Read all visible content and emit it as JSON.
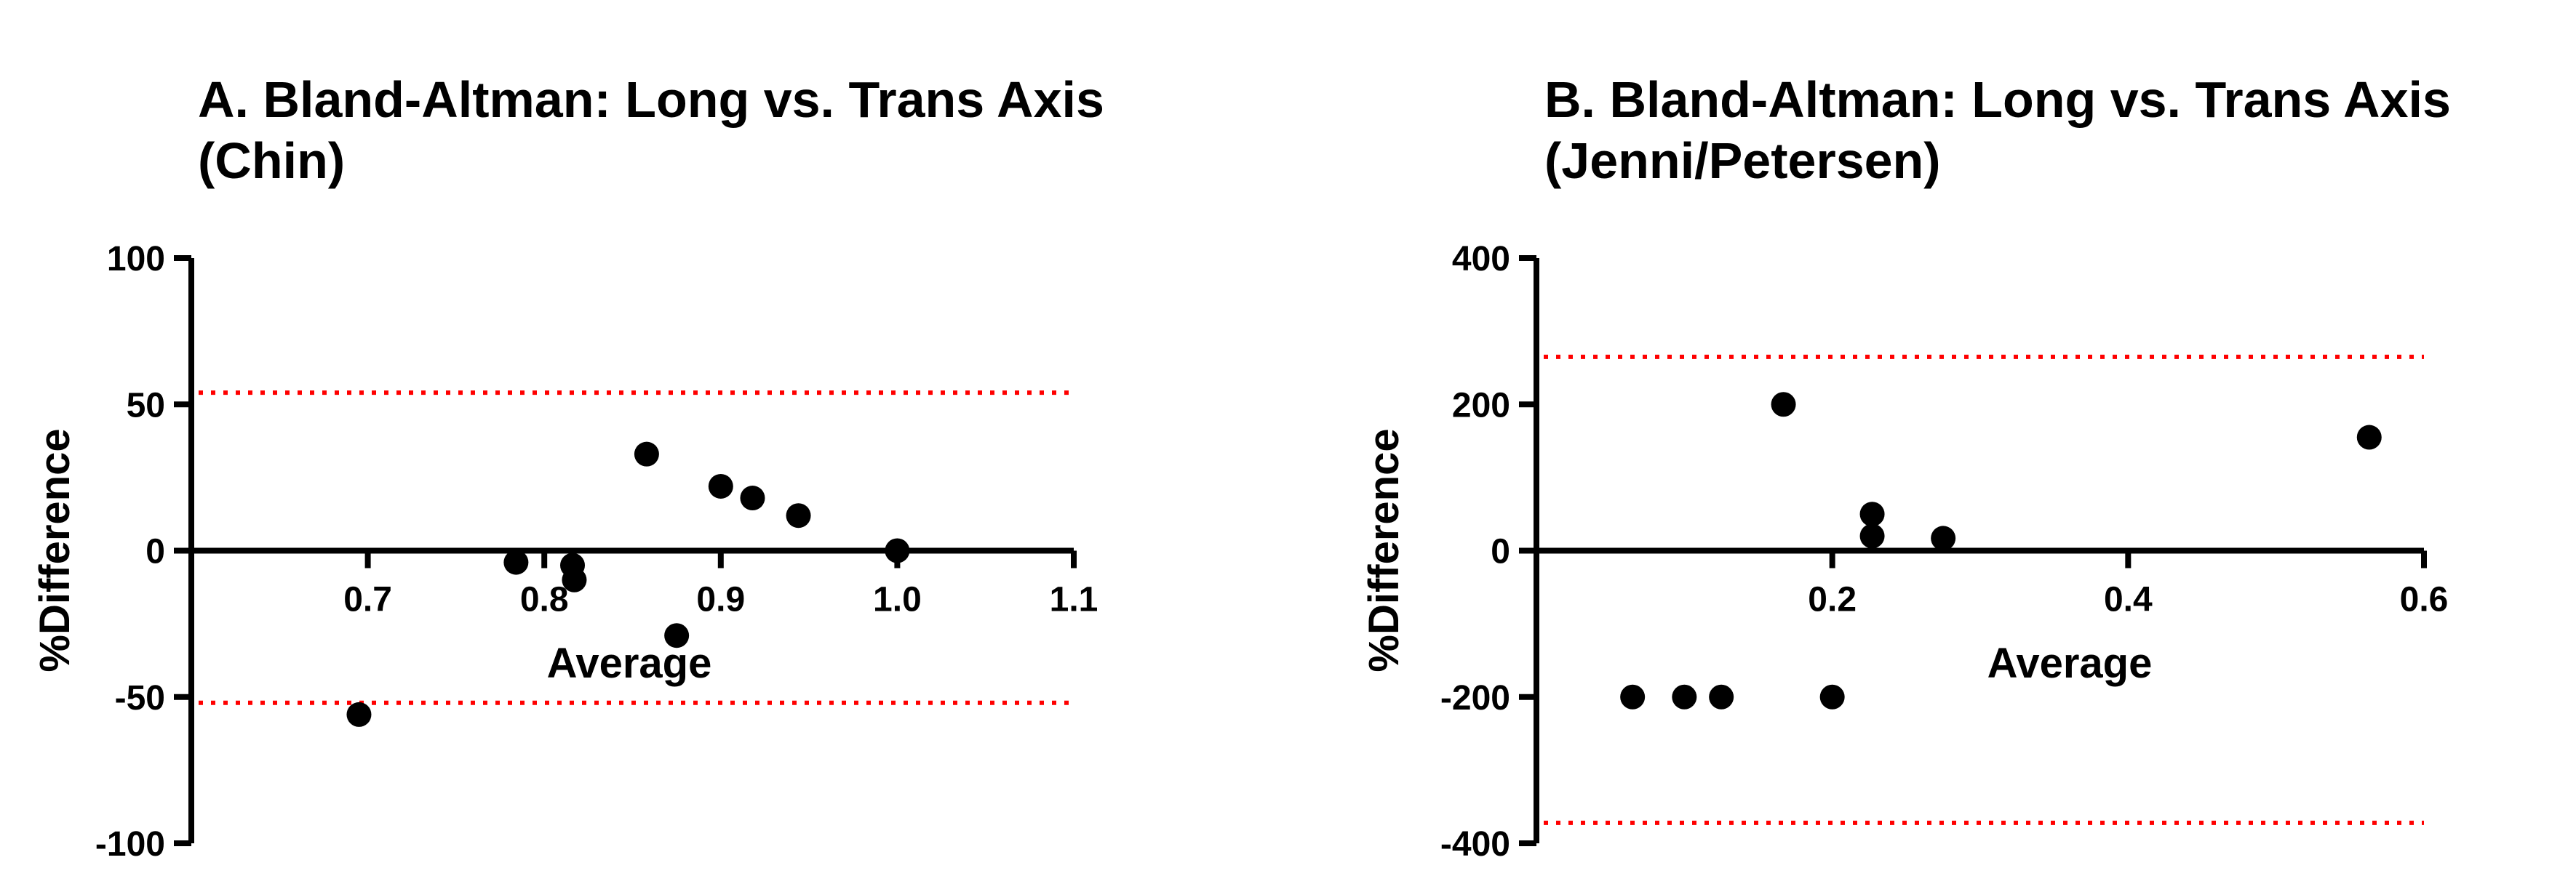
{
  "chart_data": [
    {
      "type": "scatter",
      "title_line1": "A. Bland-Altman: Long vs. Trans Axis",
      "title_line2": "(Chin)",
      "xlabel": "Average",
      "ylabel": "%Difference",
      "xlim": [
        0.6,
        1.1
      ],
      "ylim": [
        -100,
        100
      ],
      "xticks": [
        0.7,
        0.8,
        0.9,
        1.0,
        1.1
      ],
      "xtick_labels": [
        "0.7",
        "0.8",
        "0.9",
        "1.0",
        "1.1"
      ],
      "yticks": [
        100,
        50,
        0,
        -50,
        -100
      ],
      "ytick_labels": [
        "100",
        "50",
        "0",
        "-50",
        "-100"
      ],
      "limits_of_agreement": [
        54,
        -52
      ],
      "limit_color": "#ff0000",
      "points": [
        {
          "x": 0.695,
          "y": -56
        },
        {
          "x": 0.784,
          "y": -4
        },
        {
          "x": 0.816,
          "y": -5
        },
        {
          "x": 0.817,
          "y": -10
        },
        {
          "x": 0.858,
          "y": 33
        },
        {
          "x": 0.875,
          "y": -29
        },
        {
          "x": 0.9,
          "y": 22
        },
        {
          "x": 0.918,
          "y": 18
        },
        {
          "x": 0.944,
          "y": 12
        },
        {
          "x": 1.0,
          "y": 0
        }
      ]
    },
    {
      "type": "scatter",
      "title_line1": "B. Bland-Altman: Long vs. Trans Axis",
      "title_line2": "(Jenni/Petersen)",
      "xlabel": "Average",
      "ylabel": "%Difference",
      "xlim": [
        0.0,
        0.6
      ],
      "ylim": [
        -400,
        400
      ],
      "xticks": [
        0.2,
        0.4,
        0.6
      ],
      "xtick_labels": [
        "0.2",
        "0.4",
        "0.6"
      ],
      "yticks": [
        400,
        200,
        0,
        -200,
        -400
      ],
      "ytick_labels": [
        "400",
        "200",
        "0",
        "-200",
        "-400"
      ],
      "limits_of_agreement": [
        265,
        -372
      ],
      "limit_color": "#ff0000",
      "points": [
        {
          "x": 0.065,
          "y": -200
        },
        {
          "x": 0.1,
          "y": -200
        },
        {
          "x": 0.125,
          "y": -200
        },
        {
          "x": 0.167,
          "y": 200
        },
        {
          "x": 0.2,
          "y": -200
        },
        {
          "x": 0.227,
          "y": 50
        },
        {
          "x": 0.227,
          "y": 20
        },
        {
          "x": 0.275,
          "y": 17
        },
        {
          "x": 0.563,
          "y": 155
        }
      ]
    }
  ]
}
